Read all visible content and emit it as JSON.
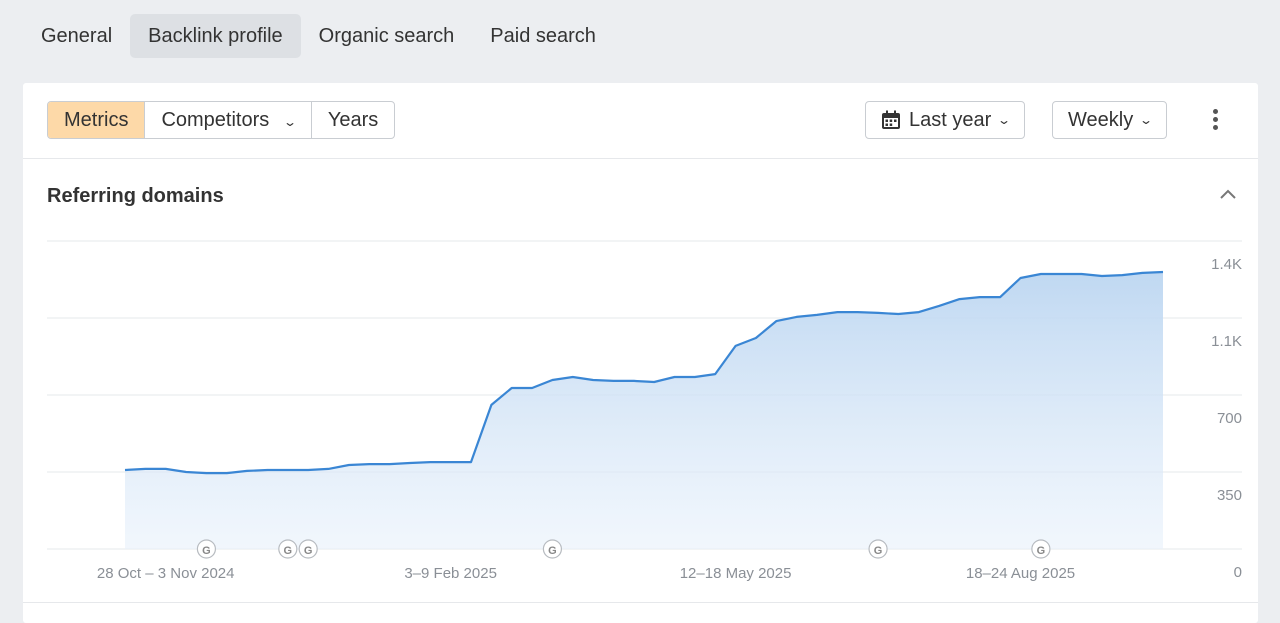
{
  "tabs": [
    {
      "label": "General"
    },
    {
      "label": "Backlink profile",
      "active": true
    },
    {
      "label": "Organic search"
    },
    {
      "label": "Paid search"
    }
  ],
  "toolbar": {
    "segments": [
      {
        "label": "Metrics",
        "active": true
      },
      {
        "label": "Competitors"
      },
      {
        "label": "Years"
      }
    ],
    "range_label": "Last year",
    "interval_label": "Weekly"
  },
  "section_title": "Referring domains",
  "colors": {
    "accent": "#3a86d4",
    "active_segment": "#fdd9a8",
    "fill": "#c5dcf3"
  },
  "chart_data": {
    "type": "area",
    "title": "Referring domains",
    "xlabel": "",
    "ylabel": "",
    "ylim": [
      0,
      1400
    ],
    "yticks": [
      {
        "value": 0,
        "label": "0"
      },
      {
        "value": 350,
        "label": "350"
      },
      {
        "value": 700,
        "label": "700"
      },
      {
        "value": 1050,
        "label": "1.1K"
      },
      {
        "value": 1400,
        "label": "1.4K"
      }
    ],
    "xticks": [
      {
        "x": "2024-10-28",
        "label": "28 Oct – 3 Nov 2024"
      },
      {
        "x": "2025-02-03",
        "label": "3–9 Feb 2025"
      },
      {
        "x": "2025-05-12",
        "label": "12–18 May 2025"
      },
      {
        "x": "2025-08-18",
        "label": "18–24 Aug 2025"
      }
    ],
    "grid": true,
    "x": [
      "2024-10-14",
      "2024-10-21",
      "2024-10-28",
      "2024-11-04",
      "2024-11-11",
      "2024-11-18",
      "2024-11-25",
      "2024-12-02",
      "2024-12-09",
      "2024-12-16",
      "2024-12-23",
      "2024-12-30",
      "2025-01-06",
      "2025-01-13",
      "2025-01-20",
      "2025-01-27",
      "2025-02-03",
      "2025-02-10",
      "2025-02-17",
      "2025-02-24",
      "2025-03-03",
      "2025-03-10",
      "2025-03-17",
      "2025-03-24",
      "2025-03-31",
      "2025-04-07",
      "2025-04-14",
      "2025-04-21",
      "2025-04-28",
      "2025-05-05",
      "2025-05-12",
      "2025-05-19",
      "2025-05-26",
      "2025-06-02",
      "2025-06-09",
      "2025-06-16",
      "2025-06-23",
      "2025-06-30",
      "2025-07-07",
      "2025-07-14",
      "2025-07-21",
      "2025-07-28",
      "2025-08-04",
      "2025-08-11",
      "2025-08-18",
      "2025-08-25",
      "2025-09-01",
      "2025-09-08",
      "2025-09-15",
      "2025-09-22",
      "2025-09-29",
      "2025-10-06"
    ],
    "values": [
      359,
      364,
      364,
      350,
      345,
      345,
      355,
      359,
      359,
      359,
      364,
      382,
      386,
      386,
      391,
      395,
      395,
      395,
      655,
      732,
      732,
      768,
      782,
      768,
      764,
      764,
      759,
      782,
      782,
      795,
      923,
      959,
      1036,
      1055,
      1064,
      1077,
      1077,
      1073,
      1068,
      1077,
      1105,
      1136,
      1145,
      1145,
      1232,
      1250,
      1250,
      1250,
      1241,
      1245,
      1255,
      1259
    ],
    "annotations": [
      {
        "x": "2024-11-11",
        "label": "G"
      },
      {
        "x": "2024-12-09",
        "label": "G"
      },
      {
        "x": "2024-12-16",
        "label": "G"
      },
      {
        "x": "2025-03-10",
        "label": "G"
      },
      {
        "x": "2025-06-30",
        "label": "G"
      },
      {
        "x": "2025-08-25",
        "label": "G"
      }
    ]
  }
}
